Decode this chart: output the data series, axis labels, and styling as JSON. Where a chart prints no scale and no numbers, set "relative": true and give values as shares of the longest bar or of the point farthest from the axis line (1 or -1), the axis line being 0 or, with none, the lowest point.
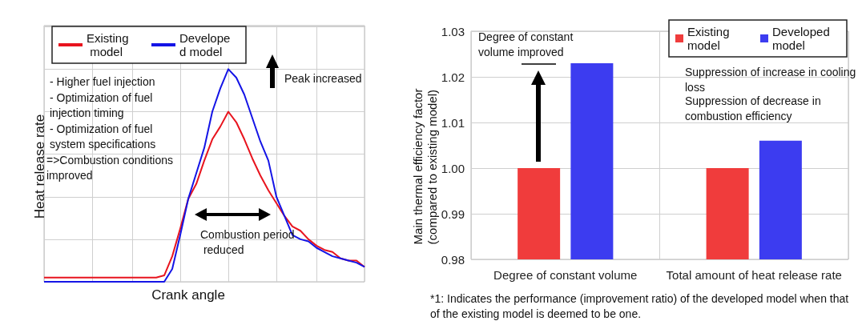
{
  "chart_data": [
    {
      "type": "line",
      "relative": true,
      "xlabel": "Crank angle",
      "ylabel": "Heat release rate",
      "grid": true,
      "legend": "top left",
      "marker": "none",
      "line_style": "solid",
      "categories": [
        null,
        null,
        null,
        null,
        null,
        null,
        null,
        null,
        null,
        null,
        null,
        null,
        null,
        null,
        null,
        null,
        null,
        null,
        null,
        null,
        null,
        null,
        null,
        null,
        null,
        null,
        null,
        null,
        null,
        null,
        null,
        null,
        null,
        null,
        null,
        null,
        null,
        null,
        null,
        null,
        null
      ],
      "series": [
        {
          "name": "Existing model",
          "color": "#e8141e",
          "values": [
            0.02,
            0.02,
            0.02,
            0.02,
            0.02,
            0.02,
            0.02,
            0.02,
            0.02,
            0.02,
            0.02,
            0.02,
            0.02,
            0.02,
            0.02,
            0.03,
            0.12,
            0.25,
            0.39,
            0.46,
            0.57,
            0.67,
            0.73,
            0.8,
            0.75,
            0.67,
            0.58,
            0.5,
            0.43,
            0.37,
            0.31,
            0.26,
            0.24,
            0.2,
            0.17,
            0.15,
            0.14,
            0.11,
            0.1,
            0.1,
            0.07
          ]
        },
        {
          "name": "Developed model",
          "color": "#1414e6",
          "values": [
            0,
            0,
            0,
            0,
            0,
            0,
            0,
            0,
            0,
            0,
            0,
            0,
            0,
            0,
            0,
            0,
            0.06,
            0.22,
            0.39,
            0.51,
            0.63,
            0.8,
            0.91,
            1,
            0.96,
            0.88,
            0.77,
            0.66,
            0.57,
            0.4,
            0.31,
            0.22,
            0.2,
            0.19,
            0.16,
            0.14,
            0.12,
            0.11,
            0.1,
            0.09,
            0.07
          ]
        }
      ],
      "annotations": [
        "- Higher fuel injection",
        "- Optimization of fuel injection timing",
        "- Optimization of fuel system specifications",
        "=>Combustion conditions improved",
        "Peak increased",
        "Combustion period reduced"
      ]
    },
    {
      "type": "bar",
      "ylabel": "Main thermal efficiency factor\n(compared to existing model)",
      "grid": true,
      "legend": "top right",
      "categories": [
        "Degree of constant volume",
        "Total amount of heat release rate"
      ],
      "ylim": [
        0.98,
        1.03
      ],
      "yticks": [
        0.98,
        0.99,
        {
          "value": 1,
          "label": "1.00"
        },
        1.01,
        1.02,
        1.03
      ],
      "series": [
        {
          "name": "Existing model",
          "color": "#f03c3c",
          "values": [
            1,
            1
          ]
        },
        {
          "name": "Developed model",
          "color": "#3c3cf0",
          "values": [
            1.023,
            1.006
          ]
        }
      ],
      "annotations": [
        "Degree of constant volume improved",
        "Suppression of increase in cooling loss",
        "Suppression of decrease in combustion efficiency",
        "*1: Indicates the performance (improvement ratio) of the developed model when that of the existing model is deemed to be one."
      ]
    }
  ]
}
